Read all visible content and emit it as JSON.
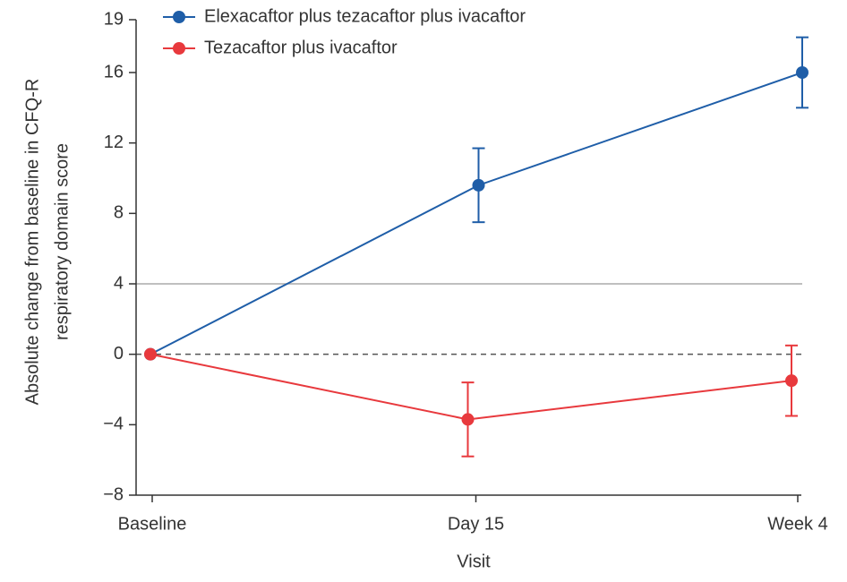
{
  "chart_data": {
    "type": "line",
    "x_label": "Visit",
    "y_label": [
      "Absolute change from baseline in CFQ-R",
      "respiratory domain score"
    ],
    "categories": [
      "Baseline",
      "Day 15",
      "Week 4"
    ],
    "series": [
      {
        "name": "Elexacaftor plus tezacaftor plus ivacaftor",
        "color": "#1f5ea8",
        "values": [
          0,
          9.6,
          16.0
        ],
        "errors": [
          null,
          2.1,
          2.0
        ]
      },
      {
        "name": "Tezacaftor plus ivacaftor",
        "color": "#e8393d",
        "values": [
          0,
          -3.7,
          -1.5
        ],
        "errors": [
          null,
          2.1,
          2.0
        ]
      }
    ],
    "ylim": [
      -8,
      19
    ],
    "yticks": [
      {
        "value": -8,
        "label": "−8"
      },
      {
        "value": -4,
        "label": "−4"
      },
      0,
      4,
      8,
      12,
      16,
      19
    ],
    "reference_lines": [
      {
        "value": 4,
        "style": "solid"
      },
      {
        "value": 0,
        "style": "dashed"
      }
    ],
    "legend": "top"
  }
}
